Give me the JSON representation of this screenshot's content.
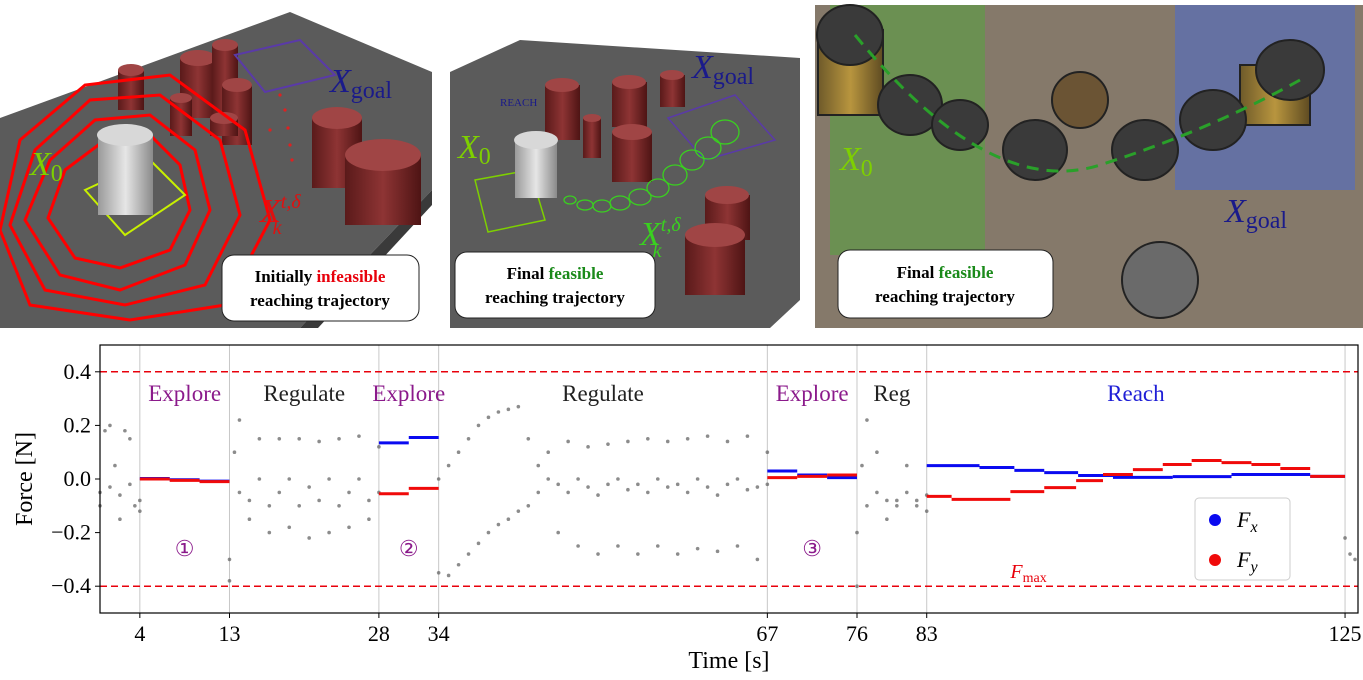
{
  "panels": [
    {
      "labels": [
        {
          "text": "X",
          "sub": "goal"
        },
        {
          "text": "X",
          "sub": "0"
        },
        {
          "text": "X",
          "sub": "k",
          "sup": "t,δ"
        }
      ],
      "caption": {
        "before": "Initially",
        "emphasis": "infeasible",
        "emphasis_color": "#e8000b",
        "after": "reaching trajectory"
      }
    },
    {
      "tag": "REACH",
      "labels": [
        {
          "text": "X",
          "sub": "goal"
        },
        {
          "text": "X",
          "sub": "0"
        },
        {
          "text": "X",
          "sub": "k",
          "sup": "t,δ"
        }
      ],
      "caption": {
        "before": "Final",
        "emphasis": "feasible",
        "emphasis_color": "#1a8a1a",
        "after": "reaching trajectory"
      }
    },
    {
      "labels": [
        {
          "text": "X",
          "sub": "0"
        },
        {
          "text": "X",
          "sub": "goal"
        }
      ],
      "caption": {
        "before": "Final",
        "emphasis": "feasible",
        "emphasis_color": "#1a8a1a",
        "after": "reaching trajectory"
      }
    }
  ],
  "chart_data": {
    "type": "line",
    "drawstyle": "steps-post",
    "x_label": "Time [s]",
    "y_label": "Force [N]",
    "xlim": [
      0,
      126.3
    ],
    "ylim": [
      -0.5,
      0.5
    ],
    "xticks": [
      4,
      13,
      28,
      34,
      67,
      76,
      83,
      125
    ],
    "yticks": [
      {
        "value": -0.4,
        "label": "−0.4"
      },
      {
        "value": -0.2,
        "label": "−0.2"
      },
      {
        "value": 0,
        "label": "0.0"
      },
      0.2,
      0.4
    ],
    "grid_x": true,
    "limits": [
      0.4,
      -0.4
    ],
    "limit_color": "#e8000b",
    "limit_label": {
      "text": "F",
      "sub": "max"
    },
    "legend": "lower right",
    "phases": [
      {
        "start": 4,
        "end": 13,
        "label": "Explore",
        "color": "#8b1a8b",
        "marker": "①"
      },
      {
        "start": 13,
        "end": 28,
        "label": "Regulate",
        "color": "#222222"
      },
      {
        "start": 28,
        "end": 34,
        "label": "Explore",
        "color": "#8b1a8b",
        "marker": "②"
      },
      {
        "start": 34,
        "end": 67,
        "label": "Regulate",
        "color": "#222222"
      },
      {
        "start": 67,
        "end": 76,
        "label": "Explore",
        "color": "#8b1a8b",
        "marker": "③"
      },
      {
        "start": 76,
        "end": 83,
        "label": "Reg",
        "color": "#222222"
      },
      {
        "start": 83,
        "end": 125,
        "label": "Reach",
        "color": "#1f1fd6"
      }
    ],
    "series": [
      {
        "name": "F",
        "name_sub": "x",
        "color": "#0a0af0",
        "x": [
          4,
          7,
          10,
          13,
          28,
          31,
          34,
          67,
          70,
          73,
          76,
          83,
          88.3,
          91.8,
          94.8,
          98.2,
          101.7,
          107.7,
          113.6,
          121.5,
          125
        ],
        "values": [
          0.002,
          -0.003,
          -0.008,
          null,
          0.135,
          0.155,
          null,
          0.03,
          0.015,
          0.005,
          null,
          0.05,
          0.043,
          0.032,
          0.024,
          0.013,
          0.006,
          0.009,
          0.017,
          0.01,
          null
        ]
      },
      {
        "name": "F",
        "name_sub": "y",
        "color": "#f00a0a",
        "x": [
          4,
          7,
          10,
          13,
          28,
          31,
          34,
          67,
          70,
          73,
          76,
          83,
          85.5,
          91.4,
          94.8,
          98,
          100.7,
          103.7,
          106.7,
          109.6,
          112.6,
          115.6,
          118.5,
          121.5,
          125
        ],
        "values": [
          0,
          -0.005,
          -0.01,
          null,
          -0.055,
          -0.035,
          null,
          0.005,
          0.01,
          0.015,
          null,
          -0.065,
          -0.076,
          -0.047,
          -0.032,
          -0.006,
          0.017,
          0.035,
          0.054,
          0.069,
          0.061,
          0.054,
          0.039,
          0.01,
          null
        ]
      }
    ],
    "measured": [
      {
        "color": "#666666",
        "x": [
          0,
          0.5,
          1,
          1.5,
          2,
          2.5,
          3,
          3.5,
          4,
          13,
          13.5,
          14,
          15,
          16,
          17,
          18,
          19,
          20,
          21,
          22,
          23,
          24,
          25,
          26,
          27,
          28,
          34,
          35,
          36,
          37,
          38,
          39,
          40,
          41,
          42,
          43,
          44,
          45,
          46,
          47,
          48,
          49,
          50,
          51,
          52,
          53,
          54,
          55,
          56,
          57,
          58,
          59,
          60,
          61,
          62,
          63,
          64,
          65,
          66,
          67,
          76,
          76.5,
          77,
          78,
          79,
          80,
          81,
          82,
          83,
          125,
          125.5,
          126
        ],
        "values": [
          -0.1,
          0.18,
          0.2,
          0.05,
          -0.15,
          0.18,
          0.15,
          -0.1,
          -0.12,
          -0.38,
          0.1,
          0.22,
          -0.15,
          0.15,
          -0.2,
          0.15,
          -0.18,
          0.15,
          -0.22,
          0.14,
          -0.2,
          0.15,
          -0.18,
          0.16,
          -0.15,
          0.12,
          -0.35,
          -0.36,
          -0.32,
          -0.28,
          -0.24,
          -0.2,
          -0.17,
          -0.15,
          -0.12,
          -0.1,
          -0.05,
          0.1,
          -0.2,
          0.14,
          -0.25,
          0.12,
          -0.28,
          0.13,
          -0.25,
          0.14,
          -0.28,
          0.15,
          -0.25,
          0.14,
          -0.28,
          0.15,
          -0.26,
          0.16,
          -0.27,
          0.14,
          -0.25,
          0.16,
          -0.3,
          0.1,
          -0.4,
          0.05,
          0.22,
          0.1,
          -0.15,
          -0.08,
          0.05,
          -0.1,
          -0.12,
          -0.22,
          -0.28,
          -0.3
        ]
      },
      {
        "color": "#666666",
        "x": [
          0,
          1,
          2,
          3,
          4,
          13,
          14,
          15,
          16,
          17,
          18,
          19,
          20,
          21,
          22,
          23,
          24,
          25,
          26,
          27,
          28,
          34,
          35,
          36,
          37,
          38,
          39,
          40,
          41,
          42,
          43,
          44,
          45,
          46,
          47,
          48,
          49,
          50,
          51,
          52,
          53,
          54,
          55,
          56,
          57,
          58,
          59,
          60,
          61,
          62,
          63,
          64,
          65,
          66,
          67,
          76,
          77,
          78,
          79,
          80,
          81,
          82,
          83
        ],
        "values": [
          -0.05,
          -0.03,
          -0.06,
          -0.02,
          -0.08,
          -0.3,
          -0.05,
          -0.08,
          0,
          -0.1,
          -0.05,
          0,
          -0.1,
          -0.03,
          -0.08,
          0,
          -0.1,
          -0.05,
          0,
          -0.08,
          -0.05,
          0,
          0.05,
          0.1,
          0.15,
          0.2,
          0.23,
          0.25,
          0.26,
          0.27,
          0.15,
          0.05,
          0,
          -0.02,
          -0.05,
          0,
          -0.03,
          -0.06,
          -0.02,
          0,
          -0.04,
          -0.02,
          -0.05,
          0,
          -0.03,
          -0.02,
          -0.05,
          0,
          -0.03,
          -0.06,
          -0.02,
          0,
          -0.04,
          -0.03,
          -0.02,
          -0.2,
          -0.1,
          -0.05,
          -0.08,
          -0.1,
          -0.05,
          -0.08,
          -0.06
        ]
      }
    ]
  }
}
